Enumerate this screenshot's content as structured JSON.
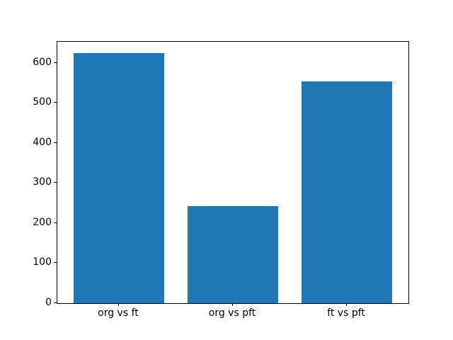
{
  "chart_data": {
    "type": "bar",
    "categories": [
      "org vs ft",
      "org vs pft",
      "ft vs pft"
    ],
    "values": [
      625,
      242,
      554
    ],
    "title": "",
    "xlabel": "",
    "ylabel": "",
    "ylim": [
      0,
      653
    ],
    "yticks": [
      0,
      100,
      200,
      300,
      400,
      500,
      600
    ],
    "bar_color": "#1f77b4",
    "bar_width_fraction": 0.8,
    "x_axis_margin": 0.54,
    "grid": false,
    "legend_position": "none",
    "background_color": "#ffffff",
    "spine_color": "#000000"
  }
}
